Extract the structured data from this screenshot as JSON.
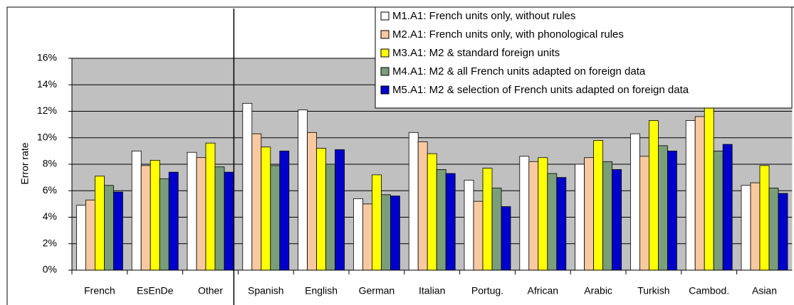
{
  "chart_data": {
    "type": "bar",
    "y_label": "Error rate",
    "categories": [
      "French",
      "EsEnDe",
      "Other",
      "Spanish",
      "English",
      "German",
      "Italian",
      "Portug.",
      "African",
      "Arabic",
      "Turkish",
      "Cambod.",
      "Asian"
    ],
    "series": [
      {
        "name": "M1.A1: French units only, without rules",
        "color": "#ffffff",
        "values": [
          4.9,
          9.0,
          8.9,
          12.6,
          12.1,
          5.4,
          10.4,
          6.8,
          8.6,
          8.0,
          10.3,
          11.3,
          6.4
        ]
      },
      {
        "name": "M2.A1: French units only, with phonological rules",
        "color": "#f8c9a0",
        "values": [
          5.3,
          7.9,
          8.5,
          10.3,
          10.4,
          5.0,
          9.7,
          5.2,
          8.2,
          8.5,
          8.6,
          11.6,
          6.6
        ]
      },
      {
        "name": "M3.A1: M2 & standard foreign units",
        "color": "#ffff00",
        "values": [
          7.1,
          8.3,
          9.6,
          9.3,
          9.2,
          7.2,
          8.8,
          7.7,
          8.5,
          9.8,
          11.3,
          12.6,
          7.9
        ]
      },
      {
        "name": "M4.A1: M2 & all French units adapted on foreign data",
        "color": "#7a9e7a",
        "values": [
          6.4,
          6.9,
          7.8,
          7.9,
          8.0,
          5.7,
          7.6,
          6.2,
          7.3,
          8.2,
          9.4,
          9.0,
          6.2
        ]
      },
      {
        "name": "M5.A1: M2 & selection of French units adapted on foreign data",
        "color": "#0000cc",
        "values": [
          5.9,
          7.4,
          7.4,
          9.0,
          9.1,
          5.6,
          7.3,
          4.8,
          7.0,
          7.6,
          9.0,
          9.5,
          5.8
        ]
      }
    ],
    "ylim": [
      0,
      16
    ],
    "yticks": [
      {
        "value": 0,
        "label": "0%"
      },
      {
        "value": 2,
        "label": "2%"
      },
      {
        "value": 4,
        "label": "4%"
      },
      {
        "value": 6,
        "label": "6%"
      },
      {
        "value": 8,
        "label": "8%"
      },
      {
        "value": 10,
        "label": "10%"
      },
      {
        "value": 12,
        "label": "12%"
      },
      {
        "value": 14,
        "label": "14%"
      },
      {
        "value": 16,
        "label": "16%"
      }
    ],
    "grid": true,
    "plot_background": "#c0c0c0",
    "legend_position": "top-right"
  }
}
